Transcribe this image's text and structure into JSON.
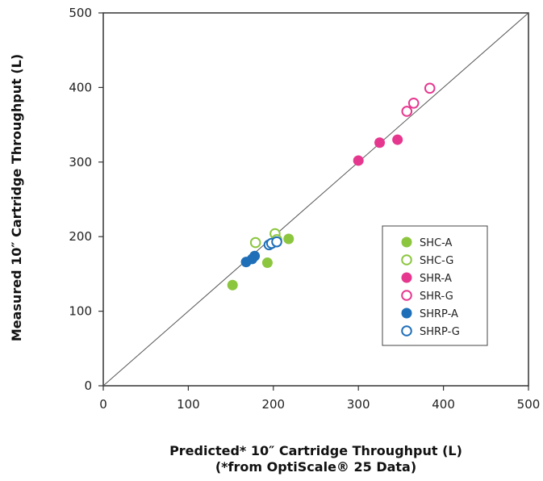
{
  "chart_data": {
    "type": "scatter",
    "xlabel": "Predicted* 10″ Cartridge Throughput (L)",
    "xlabel_note": "(*from OptiScale® 25 Data)",
    "ylabel": "Measured 10″ Cartridge Throughput (L)",
    "xlim": [
      0,
      500
    ],
    "ylim": [
      0,
      500
    ],
    "xticks": [
      "0",
      "100",
      "200",
      "300",
      "400",
      "500"
    ],
    "yticks": [
      "0",
      "100",
      "200",
      "300",
      "400",
      "500"
    ],
    "grid": false,
    "reference_line": "y = x",
    "legend_position": "right",
    "series": [
      {
        "name": "SHC-A",
        "color": "#8cc63f",
        "marker": "filled-circle",
        "x": [
          152,
          193,
          218
        ],
        "y": [
          135,
          165,
          197
        ]
      },
      {
        "name": "SHC-G",
        "color": "#8cc63f",
        "marker": "open-circle",
        "x": [
          179,
          202,
          204
        ],
        "y": [
          192,
          204,
          196
        ]
      },
      {
        "name": "SHR-A",
        "color": "#e6378f",
        "marker": "filled-circle",
        "x": [
          300,
          325,
          346
        ],
        "y": [
          302,
          326,
          330
        ]
      },
      {
        "name": "SHR-G",
        "color": "#e6378f",
        "marker": "open-circle",
        "x": [
          357,
          365,
          384
        ],
        "y": [
          368,
          379,
          399
        ]
      },
      {
        "name": "SHRP-A",
        "color": "#1f6fb8",
        "marker": "filled-circle",
        "x": [
          168,
          175,
          178
        ],
        "y": [
          166,
          170,
          174
        ]
      },
      {
        "name": "SHRP-G",
        "color": "#1f6fb8",
        "marker": "open-circle",
        "x": [
          195,
          198,
          204
        ],
        "y": [
          189,
          191,
          193
        ]
      }
    ]
  }
}
